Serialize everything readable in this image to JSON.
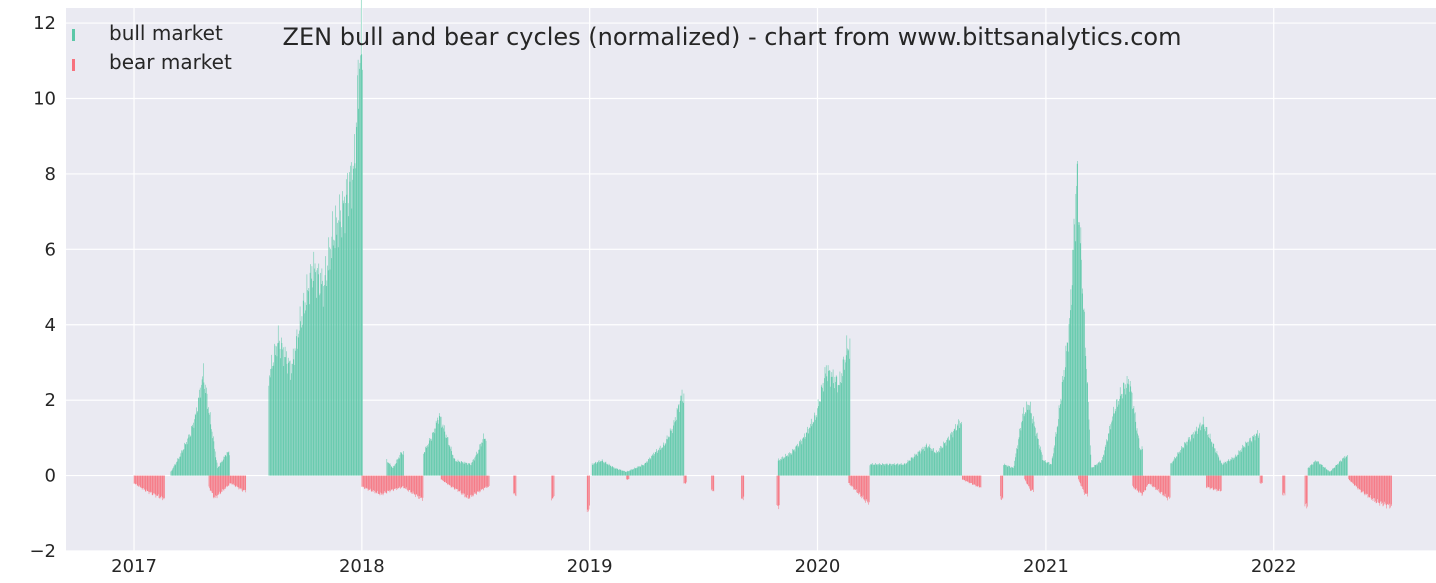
{
  "chart_data": {
    "type": "bar",
    "title": "ZEN bull and bear cycles (normalized)  - chart from www.bittsanalytics.com",
    "xlabel": "",
    "ylabel": "",
    "ylim": [
      -2,
      12.4
    ],
    "xlim": [
      "2016-09-14",
      "2022-09-18"
    ],
    "grid": true,
    "legend_position": "top-left",
    "y_ticks": [
      "−2",
      "0",
      "2",
      "4",
      "6",
      "8",
      "10",
      "12"
    ],
    "x_ticks": [
      {
        "date": "2017-01-01",
        "label": "2017"
      },
      {
        "date": "2018-01-01",
        "label": "2018"
      },
      {
        "date": "2019-01-01",
        "label": "2019"
      },
      {
        "date": "2020-01-01",
        "label": "2020"
      },
      {
        "date": "2021-01-01",
        "label": "2021"
      },
      {
        "date": "2022-01-01",
        "label": "2022"
      }
    ],
    "colors": {
      "bull": "#5cc8a8",
      "bear": "#f7727e",
      "background": "#eaeaf2",
      "grid": "#ffffff"
    },
    "series": [
      {
        "name": "bull market",
        "key": "bull",
        "points": [
          [
            "2017-03-01",
            0.1
          ],
          [
            "2017-03-15",
            0.5
          ],
          [
            "2017-04-01",
            1.1
          ],
          [
            "2017-04-10",
            1.6
          ],
          [
            "2017-04-22",
            2.7
          ],
          [
            "2017-05-15",
            0.2
          ],
          [
            "2017-05-30",
            0.6
          ],
          [
            "2017-08-05",
            2.6
          ],
          [
            "2017-08-20",
            3.6
          ],
          [
            "2017-09-10",
            2.8
          ],
          [
            "2017-09-25",
            4.1
          ],
          [
            "2017-10-15",
            5.5
          ],
          [
            "2017-11-01",
            5.0
          ],
          [
            "2017-11-15",
            6.3
          ],
          [
            "2017-12-01",
            7.0
          ],
          [
            "2017-12-20",
            8.2
          ],
          [
            "2017-12-29",
            11.3
          ],
          [
            "2018-02-10",
            0.4
          ],
          [
            "2018-02-20",
            0.2
          ],
          [
            "2018-03-05",
            0.6
          ],
          [
            "2018-04-10",
            0.6
          ],
          [
            "2018-04-25",
            1.1
          ],
          [
            "2018-05-05",
            1.6
          ],
          [
            "2018-05-30",
            0.4
          ],
          [
            "2018-06-25",
            0.3
          ],
          [
            "2018-07-05",
            0.6
          ],
          [
            "2018-07-15",
            1.0
          ],
          [
            "2019-01-05",
            0.3
          ],
          [
            "2019-01-20",
            0.4
          ],
          [
            "2019-02-10",
            0.2
          ],
          [
            "2019-03-01",
            0.1
          ],
          [
            "2019-03-30",
            0.3
          ],
          [
            "2019-04-15",
            0.6
          ],
          [
            "2019-04-30",
            0.8
          ],
          [
            "2019-05-15",
            1.3
          ],
          [
            "2019-05-28",
            2.1
          ],
          [
            "2019-10-30",
            0.4
          ],
          [
            "2019-11-20",
            0.6
          ],
          [
            "2019-12-10",
            1.0
          ],
          [
            "2019-12-30",
            1.6
          ],
          [
            "2020-01-15",
            2.8
          ],
          [
            "2020-02-05",
            2.4
          ],
          [
            "2020-02-18",
            3.4
          ],
          [
            "2020-03-25",
            0.3
          ],
          [
            "2020-04-20",
            0.3
          ],
          [
            "2020-05-20",
            0.3
          ],
          [
            "2020-06-10",
            0.6
          ],
          [
            "2020-06-25",
            0.8
          ],
          [
            "2020-07-10",
            0.6
          ],
          [
            "2020-07-30",
            1.0
          ],
          [
            "2020-08-15",
            1.4
          ],
          [
            "2020-10-25",
            0.3
          ],
          [
            "2020-11-10",
            0.2
          ],
          [
            "2020-11-25",
            1.6
          ],
          [
            "2020-12-05",
            1.9
          ],
          [
            "2020-12-28",
            0.4
          ],
          [
            "2021-01-10",
            0.3
          ],
          [
            "2021-01-20",
            1.4
          ],
          [
            "2021-02-01",
            3.0
          ],
          [
            "2021-02-08",
            4.0
          ],
          [
            "2021-02-20",
            8.0
          ],
          [
            "2021-03-15",
            0.2
          ],
          [
            "2021-04-01",
            0.4
          ],
          [
            "2021-04-20",
            1.7
          ],
          [
            "2021-05-05",
            2.3
          ],
          [
            "2021-05-15",
            2.5
          ],
          [
            "2021-06-01",
            0.7
          ],
          [
            "2021-07-20",
            0.3
          ],
          [
            "2021-08-10",
            0.8
          ],
          [
            "2021-09-10",
            1.4
          ],
          [
            "2021-10-10",
            0.3
          ],
          [
            "2021-11-01",
            0.5
          ],
          [
            "2021-11-15",
            0.8
          ],
          [
            "2021-12-05",
            1.1
          ],
          [
            "2022-02-25",
            0.2
          ],
          [
            "2022-03-10",
            0.4
          ],
          [
            "2022-04-01",
            0.1
          ],
          [
            "2022-04-25",
            0.5
          ]
        ]
      },
      {
        "name": "bear market",
        "key": "bear",
        "points": [
          [
            "2017-01-01",
            -0.2
          ],
          [
            "2017-01-20",
            -0.4
          ],
          [
            "2017-02-15",
            -0.6
          ],
          [
            "2017-05-01",
            -0.3
          ],
          [
            "2017-05-10",
            -0.6
          ],
          [
            "2017-06-05",
            -0.2
          ],
          [
            "2017-06-25",
            -0.4
          ],
          [
            "2018-01-01",
            -0.3
          ],
          [
            "2018-02-01",
            -0.5
          ],
          [
            "2018-02-15",
            -0.4
          ],
          [
            "2018-03-08",
            -0.3
          ],
          [
            "2018-04-05",
            -0.6
          ],
          [
            "2018-05-08",
            -0.1
          ],
          [
            "2018-05-25",
            -0.3
          ],
          [
            "2018-06-05",
            -0.4
          ],
          [
            "2018-06-20",
            -0.6
          ],
          [
            "2018-07-20",
            -0.3
          ],
          [
            "2018-09-01",
            -0.5
          ],
          [
            "2018-11-01",
            -0.6
          ],
          [
            "2018-12-28",
            -0.9
          ],
          [
            "2019-03-01",
            -0.1
          ],
          [
            "2019-06-01",
            -0.2
          ],
          [
            "2019-07-15",
            -0.4
          ],
          [
            "2019-09-01",
            -0.6
          ],
          [
            "2019-10-28",
            -0.8
          ],
          [
            "2020-02-20",
            -0.2
          ],
          [
            "2020-03-20",
            -0.7
          ],
          [
            "2020-08-20",
            -0.1
          ],
          [
            "2020-09-15",
            -0.3
          ],
          [
            "2020-10-20",
            -0.6
          ],
          [
            "2020-11-28",
            -0.1
          ],
          [
            "2020-12-08",
            -0.4
          ],
          [
            "2021-02-22",
            -0.1
          ],
          [
            "2021-03-05",
            -0.5
          ],
          [
            "2021-05-20",
            -0.3
          ],
          [
            "2021-06-05",
            -0.5
          ],
          [
            "2021-06-15",
            -0.2
          ],
          [
            "2021-07-15",
            -0.6
          ],
          [
            "2021-09-15",
            -0.3
          ],
          [
            "2021-10-05",
            -0.4
          ],
          [
            "2021-12-10",
            -0.2
          ],
          [
            "2022-01-15",
            -0.5
          ],
          [
            "2022-02-20",
            -0.8
          ],
          [
            "2022-05-01",
            -0.1
          ],
          [
            "2022-05-20",
            -0.4
          ],
          [
            "2022-06-15",
            -0.7
          ],
          [
            "2022-07-05",
            -0.8
          ]
        ]
      }
    ]
  }
}
